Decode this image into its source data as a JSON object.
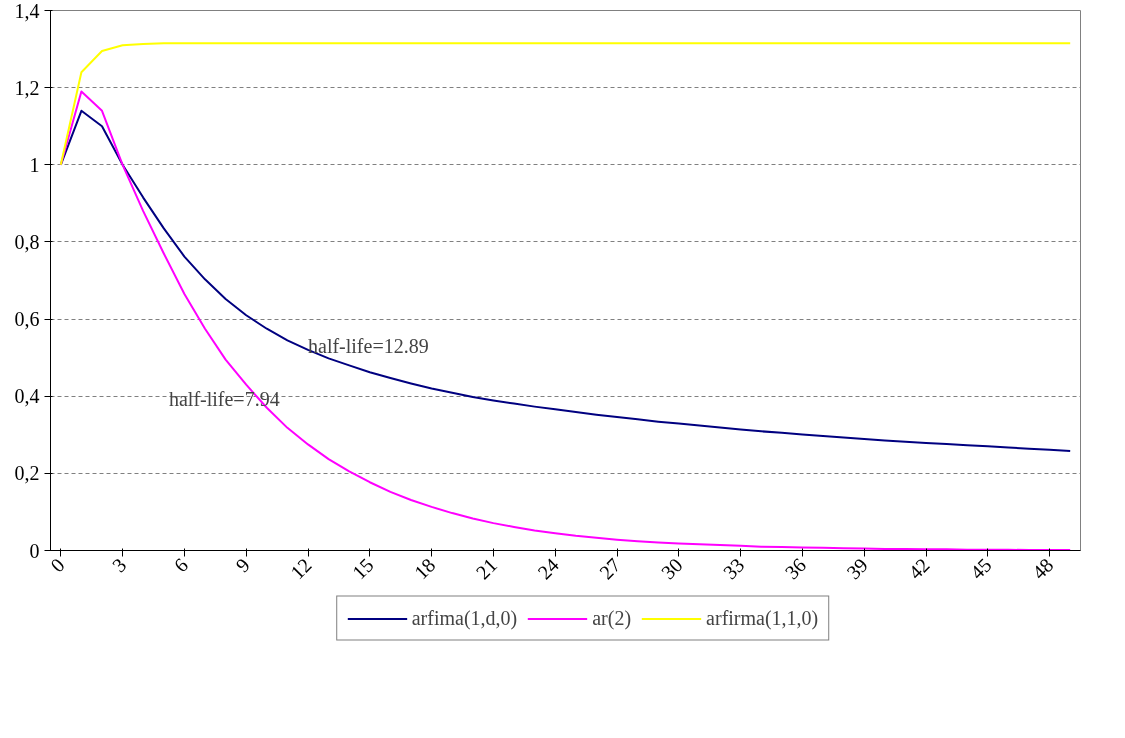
{
  "chart_data": {
    "type": "line",
    "x": [
      0,
      1,
      2,
      3,
      4,
      5,
      6,
      7,
      8,
      9,
      10,
      11,
      12,
      13,
      14,
      15,
      16,
      17,
      18,
      19,
      20,
      21,
      22,
      23,
      24,
      25,
      26,
      27,
      28,
      29,
      30,
      31,
      32,
      33,
      34,
      35,
      36,
      37,
      38,
      39,
      40,
      41,
      42,
      43,
      44,
      45,
      46,
      47,
      48,
      49
    ],
    "series": [
      {
        "name": "arfima(1,d,0)",
        "color": "#000080",
        "values": [
          1,
          1.14,
          1.1,
          1.0,
          0.915,
          0.835,
          0.762,
          0.703,
          0.652,
          0.61,
          0.575,
          0.545,
          0.52,
          0.498,
          0.48,
          0.462,
          0.447,
          0.433,
          0.42,
          0.409,
          0.398,
          0.389,
          0.381,
          0.373,
          0.366,
          0.359,
          0.352,
          0.346,
          0.34,
          0.334,
          0.329,
          0.324,
          0.319,
          0.314,
          0.309,
          0.305,
          0.301,
          0.297,
          0.293,
          0.289,
          0.285,
          0.282,
          0.279,
          0.276,
          0.273,
          0.27,
          0.267,
          0.264,
          0.261,
          0.258
        ]
      },
      {
        "name": "ar(2)",
        "color": "#ff00ff",
        "values": [
          1,
          1.19,
          1.14,
          1.0,
          0.88,
          0.77,
          0.665,
          0.575,
          0.495,
          0.43,
          0.37,
          0.318,
          0.275,
          0.237,
          0.205,
          0.177,
          0.152,
          0.131,
          0.113,
          0.097,
          0.083,
          0.071,
          0.061,
          0.052,
          0.045,
          0.038,
          0.033,
          0.028,
          0.024,
          0.021,
          0.018,
          0.016,
          0.014,
          0.012,
          0.01,
          0.009,
          0.008,
          0.007,
          0.006,
          0.005,
          0.004,
          0.004,
          0.003,
          0.003,
          0.002,
          0.002,
          0.002,
          0.001,
          0.001,
          0.001
        ]
      },
      {
        "name": "arfirma(1,1,0)",
        "color": "#ffff00",
        "values": [
          1,
          1.24,
          1.295,
          1.31,
          1.313,
          1.315,
          1.315,
          1.315,
          1.315,
          1.315,
          1.315,
          1.315,
          1.315,
          1.315,
          1.315,
          1.315,
          1.315,
          1.315,
          1.315,
          1.315,
          1.315,
          1.315,
          1.315,
          1.315,
          1.315,
          1.315,
          1.315,
          1.315,
          1.315,
          1.315,
          1.315,
          1.315,
          1.315,
          1.315,
          1.315,
          1.315,
          1.315,
          1.315,
          1.315,
          1.315,
          1.315,
          1.315,
          1.315,
          1.315,
          1.315,
          1.315,
          1.315,
          1.315,
          1.315,
          1.315
        ]
      }
    ],
    "xlim": [
      -0.5,
      49.5
    ],
    "xticks": [
      0,
      3,
      6,
      9,
      12,
      15,
      18,
      21,
      24,
      27,
      30,
      33,
      36,
      39,
      42,
      45,
      48
    ],
    "ylim": [
      0,
      1.4
    ],
    "yticks": [
      {
        "value": 0,
        "label": "0"
      },
      {
        "value": 0.2,
        "label": "0,2"
      },
      {
        "value": 0.4,
        "label": "0,4"
      },
      {
        "value": 0.6,
        "label": "0,6"
      },
      {
        "value": 0.8,
        "label": "0,8"
      },
      {
        "value": 1,
        "label": "1"
      },
      {
        "value": 1.2,
        "label": "1,2"
      },
      {
        "value": 1.4,
        "label": "1,4"
      }
    ],
    "grid": "y",
    "legend": "bottom",
    "marker": "none",
    "line_style": "solid",
    "annotations": [
      {
        "text": "half-life=12.89",
        "x": 12,
        "y": 0.53
      },
      "half-life=7.94"
    ]
  }
}
